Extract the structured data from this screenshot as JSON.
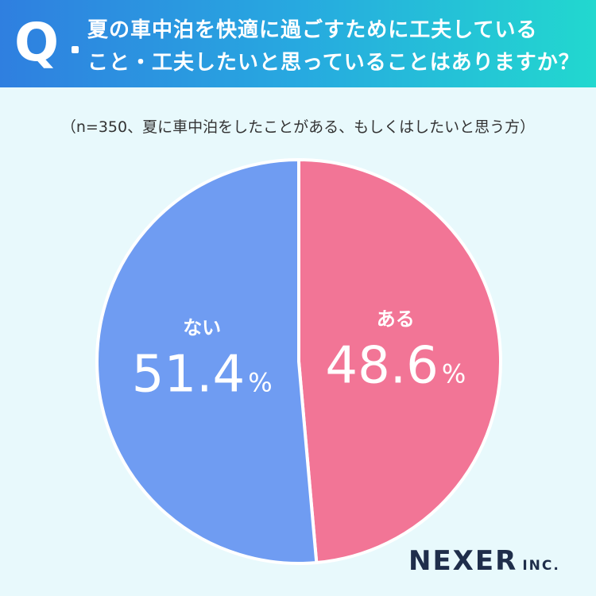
{
  "question": {
    "mark": "Q",
    "line1": "夏の車中泊を快適に過ごすために工夫している",
    "line2": "こと・工夫したいと思っていることはありますか？"
  },
  "sample_note": "（n=350、夏に車中泊をしたことがある、もしくはしたいと思う方）",
  "chart_data": {
    "type": "pie",
    "slices": [
      {
        "label": "ある",
        "value": 48.6,
        "value_text": "48.6",
        "color": "#f27596"
      },
      {
        "label": "ない",
        "value": 51.4,
        "value_text": "51.4",
        "color": "#6f9cf2"
      }
    ],
    "unit": "%"
  },
  "brand": {
    "main": "NEXER",
    "sub": "INC."
  }
}
